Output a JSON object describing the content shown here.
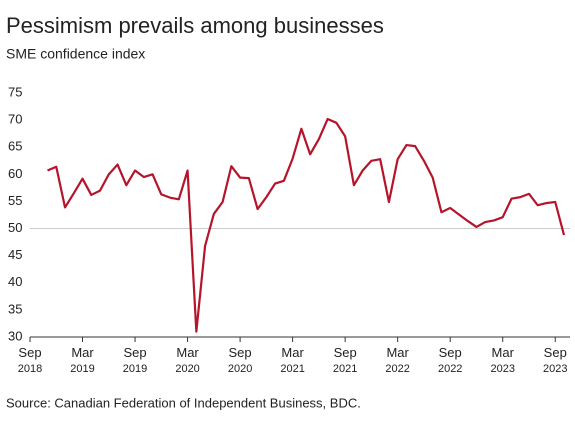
{
  "chart_data": {
    "type": "line",
    "title": "Pessimism prevails among businesses",
    "subtitle": "SME confidence index",
    "source": "Source: Canadian Federation of Independent Business, BDC.",
    "x": [
      "2018-11",
      "2018-12",
      "2019-01",
      "2019-02",
      "2019-03",
      "2019-04",
      "2019-05",
      "2019-06",
      "2019-07",
      "2019-08",
      "2019-09",
      "2019-10",
      "2019-11",
      "2019-12",
      "2020-01",
      "2020-02",
      "2020-03",
      "2020-04",
      "2020-05",
      "2020-06",
      "2020-07",
      "2020-08",
      "2020-09",
      "2020-10",
      "2020-11",
      "2020-12",
      "2021-01",
      "2021-02",
      "2021-03",
      "2021-04",
      "2021-05",
      "2021-06",
      "2021-07",
      "2021-08",
      "2021-09",
      "2021-10",
      "2021-11",
      "2021-12",
      "2022-01",
      "2022-02",
      "2022-03",
      "2022-04",
      "2022-05",
      "2022-06",
      "2022-07",
      "2022-08",
      "2022-09",
      "2022-10",
      "2022-11",
      "2022-12",
      "2023-01",
      "2023-02",
      "2023-03",
      "2023-04",
      "2023-05",
      "2023-06",
      "2023-07",
      "2023-08",
      "2023-09",
      "2023-10"
    ],
    "series": [
      {
        "name": "SME confidence index",
        "color": "#b5152b",
        "values": [
          60.7,
          61.4,
          53.9,
          56.5,
          59.2,
          56.2,
          57,
          60,
          61.8,
          58,
          60.7,
          59.5,
          60,
          56.3,
          55.7,
          55.4,
          60.7,
          31,
          46.8,
          52.7,
          54.9,
          61.5,
          59.4,
          59.3,
          53.6,
          55.8,
          58.3,
          58.8,
          62.9,
          68.4,
          63.7,
          66.5,
          70.2,
          69.5,
          67,
          58,
          60.7,
          62.5,
          62.8,
          54.9,
          62.8,
          65.4,
          65.2,
          62.5,
          59.4,
          53,
          53.8,
          52.6,
          51.4,
          50.3,
          51.2,
          51.5,
          52.1,
          55.5,
          55.8,
          56.4,
          54.3,
          54.7,
          54.9,
          48.8
        ]
      }
    ],
    "xlim": [
      "2018-09",
      "2023-10"
    ],
    "xticks": [
      {
        "value": "2018-09",
        "label": "Sep 2018"
      },
      {
        "value": "2019-03",
        "label": "Mar 2019"
      },
      {
        "value": "2019-09",
        "label": "Sep 2019"
      },
      {
        "value": "2020-03",
        "label": "Mar 2020"
      },
      {
        "value": "2020-09",
        "label": "Sep 2020"
      },
      {
        "value": "2021-03",
        "label": "Mar 2021"
      },
      {
        "value": "2021-09",
        "label": "Sep 2021"
      },
      {
        "value": "2022-03",
        "label": "Mar 2022"
      },
      {
        "value": "2022-09",
        "label": "Sep 2022"
      },
      {
        "value": "2023-03",
        "label": "Mar 2023"
      },
      {
        "value": "2023-09",
        "label": "Sep 2023"
      }
    ],
    "ylim": [
      30,
      75
    ],
    "yticks": [
      30,
      35,
      40,
      45,
      50,
      55,
      60,
      65,
      70,
      75
    ],
    "reference_line": 50
  }
}
